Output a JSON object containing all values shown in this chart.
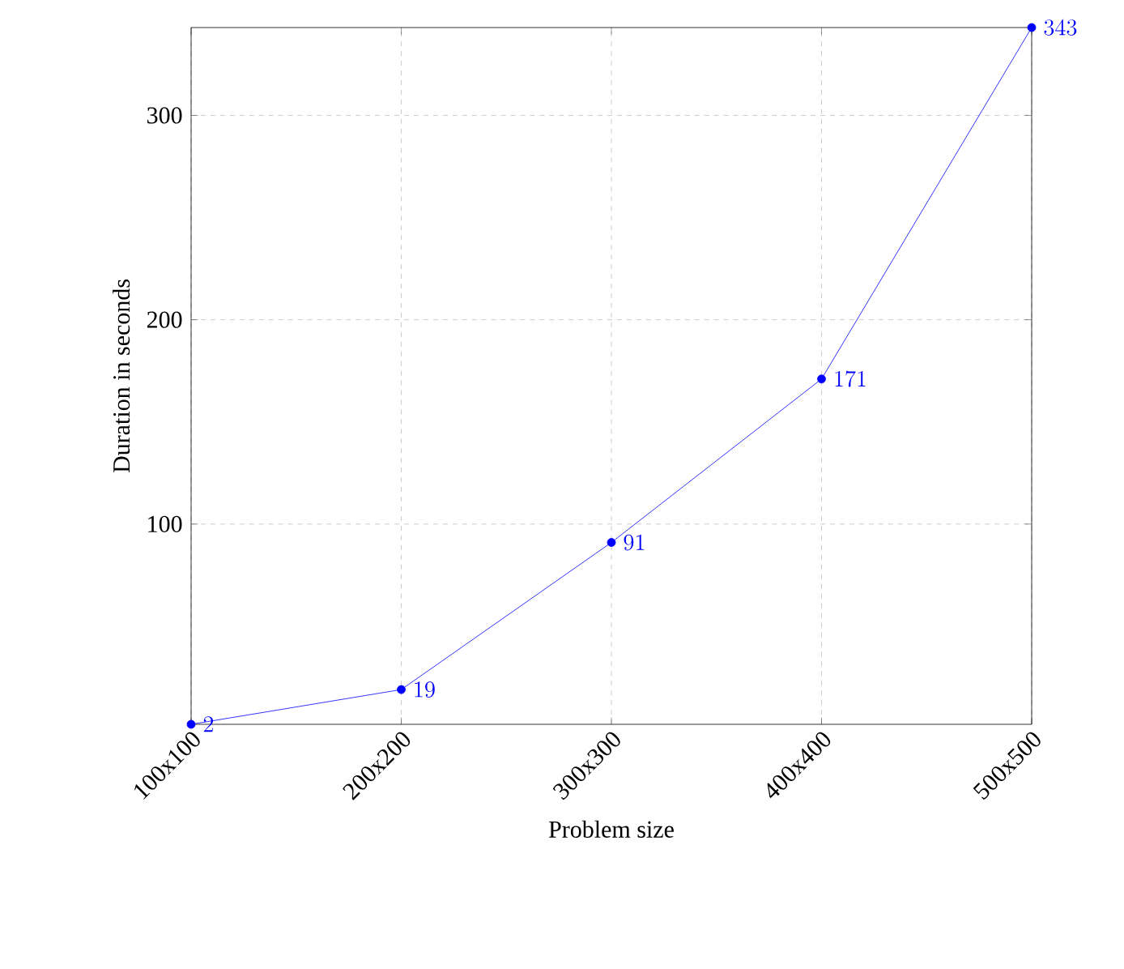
{
  "chart_data": {
    "type": "line",
    "xlabel": "Problem size",
    "ylabel": "Duration in seconds",
    "categories": [
      "100x100",
      "200x200",
      "300x300",
      "400x400",
      "500x500"
    ],
    "values": [
      2,
      19,
      91,
      171,
      343
    ],
    "color": "#0000ff",
    "marker": "circle",
    "line_style": "solid",
    "data_labels": true,
    "grid": true,
    "ylim": [
      2,
      343
    ],
    "yticks": [
      100,
      200,
      300
    ]
  }
}
